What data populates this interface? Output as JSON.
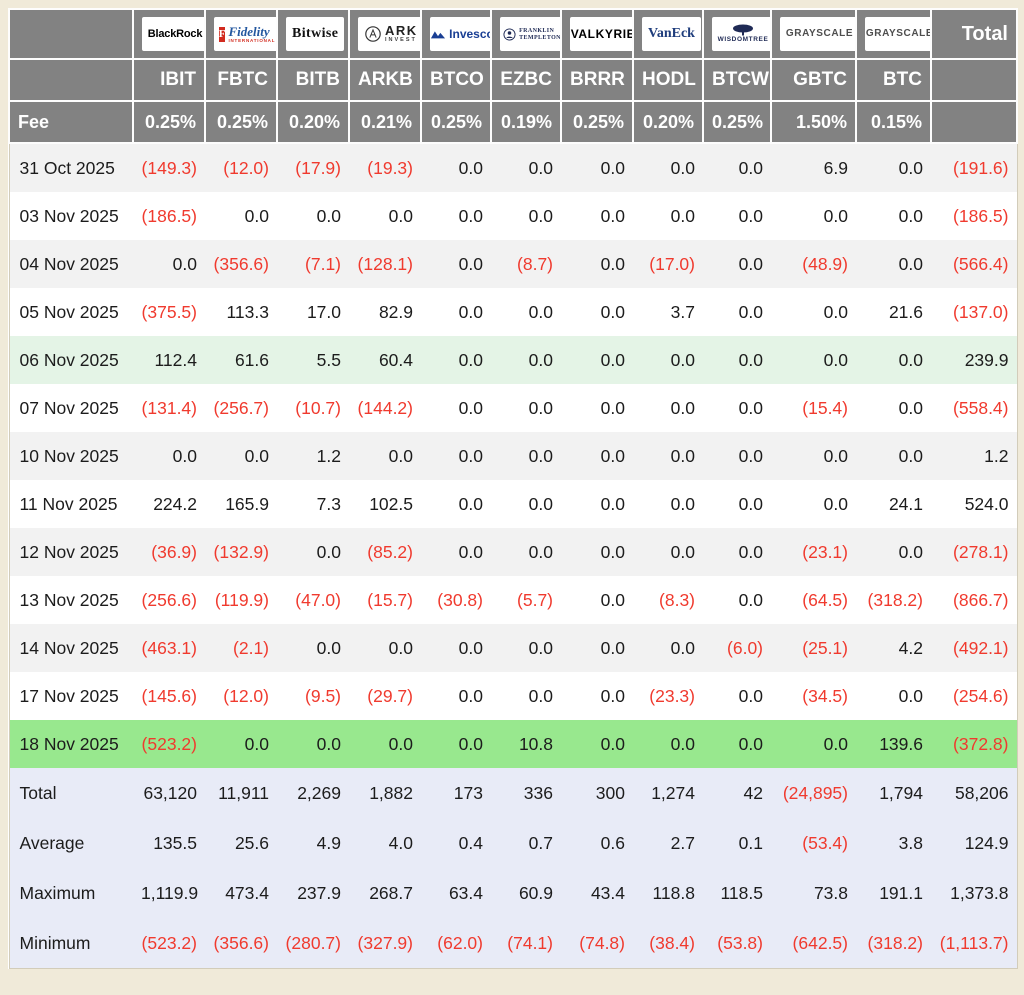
{
  "table": {
    "fee_label": "Fee",
    "total_header": "Total",
    "columns": [
      {
        "ticker": "IBIT",
        "fee": "0.25%",
        "logo": {
          "style": "blackrock",
          "text": "BlackRock"
        }
      },
      {
        "ticker": "FBTC",
        "fee": "0.25%",
        "logo": {
          "style": "fidelity",
          "badge": "F",
          "text": "Fidelity",
          "sub": "INTERNATIONAL"
        }
      },
      {
        "ticker": "BITB",
        "fee": "0.20%",
        "logo": {
          "style": "bitwise",
          "text": "Bitwise"
        }
      },
      {
        "ticker": "ARKB",
        "fee": "0.21%",
        "logo": {
          "style": "ark",
          "text": "ARK",
          "sub": "INVEST"
        }
      },
      {
        "ticker": "BTCO",
        "fee": "0.25%",
        "logo": {
          "style": "invesco",
          "text": "Invesco"
        }
      },
      {
        "ticker": "EZBC",
        "fee": "0.19%",
        "logo": {
          "style": "franklin",
          "text": "FRANKLIN",
          "sub": "TEMPLETON"
        }
      },
      {
        "ticker": "BRRR",
        "fee": "0.25%",
        "logo": {
          "style": "valkyrie",
          "text": "VALKYRIE"
        }
      },
      {
        "ticker": "HODL",
        "fee": "0.20%",
        "logo": {
          "style": "vaneck",
          "text": "VanEck"
        }
      },
      {
        "ticker": "BTCW",
        "fee": "0.25%",
        "logo": {
          "style": "wisdomtree",
          "text": "WISDOMTREE"
        }
      },
      {
        "ticker": "GBTC",
        "fee": "1.50%",
        "logo": {
          "style": "grayscale",
          "text": "GRAYSCALE"
        }
      },
      {
        "ticker": "BTC",
        "fee": "0.15%",
        "logo": {
          "style": "grayscale",
          "text": "GRAYSCALE"
        }
      }
    ],
    "rows": [
      {
        "label": "31 Oct 2025",
        "variant": "gray",
        "values": [
          "(149.3)",
          "(12.0)",
          "(17.9)",
          "(19.3)",
          "0.0",
          "0.0",
          "0.0",
          "0.0",
          "0.0",
          "6.9",
          "0.0"
        ],
        "total": "(191.6)"
      },
      {
        "label": "03 Nov 2025",
        "variant": "white",
        "values": [
          "(186.5)",
          "0.0",
          "0.0",
          "0.0",
          "0.0",
          "0.0",
          "0.0",
          "0.0",
          "0.0",
          "0.0",
          "0.0"
        ],
        "total": "(186.5)"
      },
      {
        "label": "04 Nov 2025",
        "variant": "gray",
        "values": [
          "0.0",
          "(356.6)",
          "(7.1)",
          "(128.1)",
          "0.0",
          "(8.7)",
          "0.0",
          "(17.0)",
          "0.0",
          "(48.9)",
          "0.0"
        ],
        "total": "(566.4)"
      },
      {
        "label": "05 Nov 2025",
        "variant": "white",
        "values": [
          "(375.5)",
          "113.3",
          "17.0",
          "82.9",
          "0.0",
          "0.0",
          "0.0",
          "3.7",
          "0.0",
          "0.0",
          "21.6"
        ],
        "total": "(137.0)"
      },
      {
        "label": "06 Nov 2025",
        "variant": "green-light",
        "values": [
          "112.4",
          "61.6",
          "5.5",
          "60.4",
          "0.0",
          "0.0",
          "0.0",
          "0.0",
          "0.0",
          "0.0",
          "0.0"
        ],
        "total": "239.9"
      },
      {
        "label": "07 Nov 2025",
        "variant": "white",
        "values": [
          "(131.4)",
          "(256.7)",
          "(10.7)",
          "(144.2)",
          "0.0",
          "0.0",
          "0.0",
          "0.0",
          "0.0",
          "(15.4)",
          "0.0"
        ],
        "total": "(558.4)"
      },
      {
        "label": "10 Nov 2025",
        "variant": "gray",
        "values": [
          "0.0",
          "0.0",
          "1.2",
          "0.0",
          "0.0",
          "0.0",
          "0.0",
          "0.0",
          "0.0",
          "0.0",
          "0.0"
        ],
        "total": "1.2"
      },
      {
        "label": "11 Nov 2025",
        "variant": "white",
        "values": [
          "224.2",
          "165.9",
          "7.3",
          "102.5",
          "0.0",
          "0.0",
          "0.0",
          "0.0",
          "0.0",
          "0.0",
          "24.1"
        ],
        "total": "524.0"
      },
      {
        "label": "12 Nov 2025",
        "variant": "gray",
        "values": [
          "(36.9)",
          "(132.9)",
          "0.0",
          "(85.2)",
          "0.0",
          "0.0",
          "0.0",
          "0.0",
          "0.0",
          "(23.1)",
          "0.0"
        ],
        "total": "(278.1)"
      },
      {
        "label": "13 Nov 2025",
        "variant": "white",
        "values": [
          "(256.6)",
          "(119.9)",
          "(47.0)",
          "(15.7)",
          "(30.8)",
          "(5.7)",
          "0.0",
          "(8.3)",
          "0.0",
          "(64.5)",
          "(318.2)"
        ],
        "total": "(866.7)"
      },
      {
        "label": "14 Nov 2025",
        "variant": "gray",
        "values": [
          "(463.1)",
          "(2.1)",
          "0.0",
          "0.0",
          "0.0",
          "0.0",
          "0.0",
          "0.0",
          "(6.0)",
          "(25.1)",
          "4.2"
        ],
        "total": "(492.1)"
      },
      {
        "label": "17 Nov 2025",
        "variant": "white",
        "values": [
          "(145.6)",
          "(12.0)",
          "(9.5)",
          "(29.7)",
          "0.0",
          "0.0",
          "0.0",
          "(23.3)",
          "0.0",
          "(34.5)",
          "0.0"
        ],
        "total": "(254.6)"
      },
      {
        "label": "18 Nov 2025",
        "variant": "green",
        "values": [
          "(523.2)",
          "0.0",
          "0.0",
          "0.0",
          "0.0",
          "10.8",
          "0.0",
          "0.0",
          "0.0",
          "0.0",
          "139.6"
        ],
        "total": "(372.8)"
      }
    ],
    "summary": [
      {
        "label": "Total",
        "values": [
          "63,120",
          "11,911",
          "2,269",
          "1,882",
          "173",
          "336",
          "300",
          "1,274",
          "42",
          "(24,895)",
          "1,794"
        ],
        "total": "58,206"
      },
      {
        "label": "Average",
        "values": [
          "135.5",
          "25.6",
          "4.9",
          "4.0",
          "0.4",
          "0.7",
          "0.6",
          "2.7",
          "0.1",
          "(53.4)",
          "3.8"
        ],
        "total": "124.9"
      },
      {
        "label": "Maximum",
        "values": [
          "1,119.9",
          "473.4",
          "237.9",
          "268.7",
          "63.4",
          "60.9",
          "43.4",
          "118.8",
          "118.5",
          "73.8",
          "191.1"
        ],
        "total": "1,373.8"
      },
      {
        "label": "Minimum",
        "values": [
          "(523.2)",
          "(356.6)",
          "(280.7)",
          "(327.9)",
          "(62.0)",
          "(74.1)",
          "(74.8)",
          "(38.4)",
          "(53.8)",
          "(642.5)",
          "(318.2)"
        ],
        "total": "(1,113.7)"
      }
    ]
  },
  "colors": {
    "page_bg": "#f0ead9",
    "header_bg": "#828282",
    "header_text": "#ffffff",
    "negative": "#f03a2e",
    "row_stripe": "#f2f2f2",
    "row_plain": "#ffffff",
    "highlight_soft_green": "#e4f4e6",
    "highlight_green": "#98e88e",
    "summary_bg": "#e8ebf7"
  }
}
